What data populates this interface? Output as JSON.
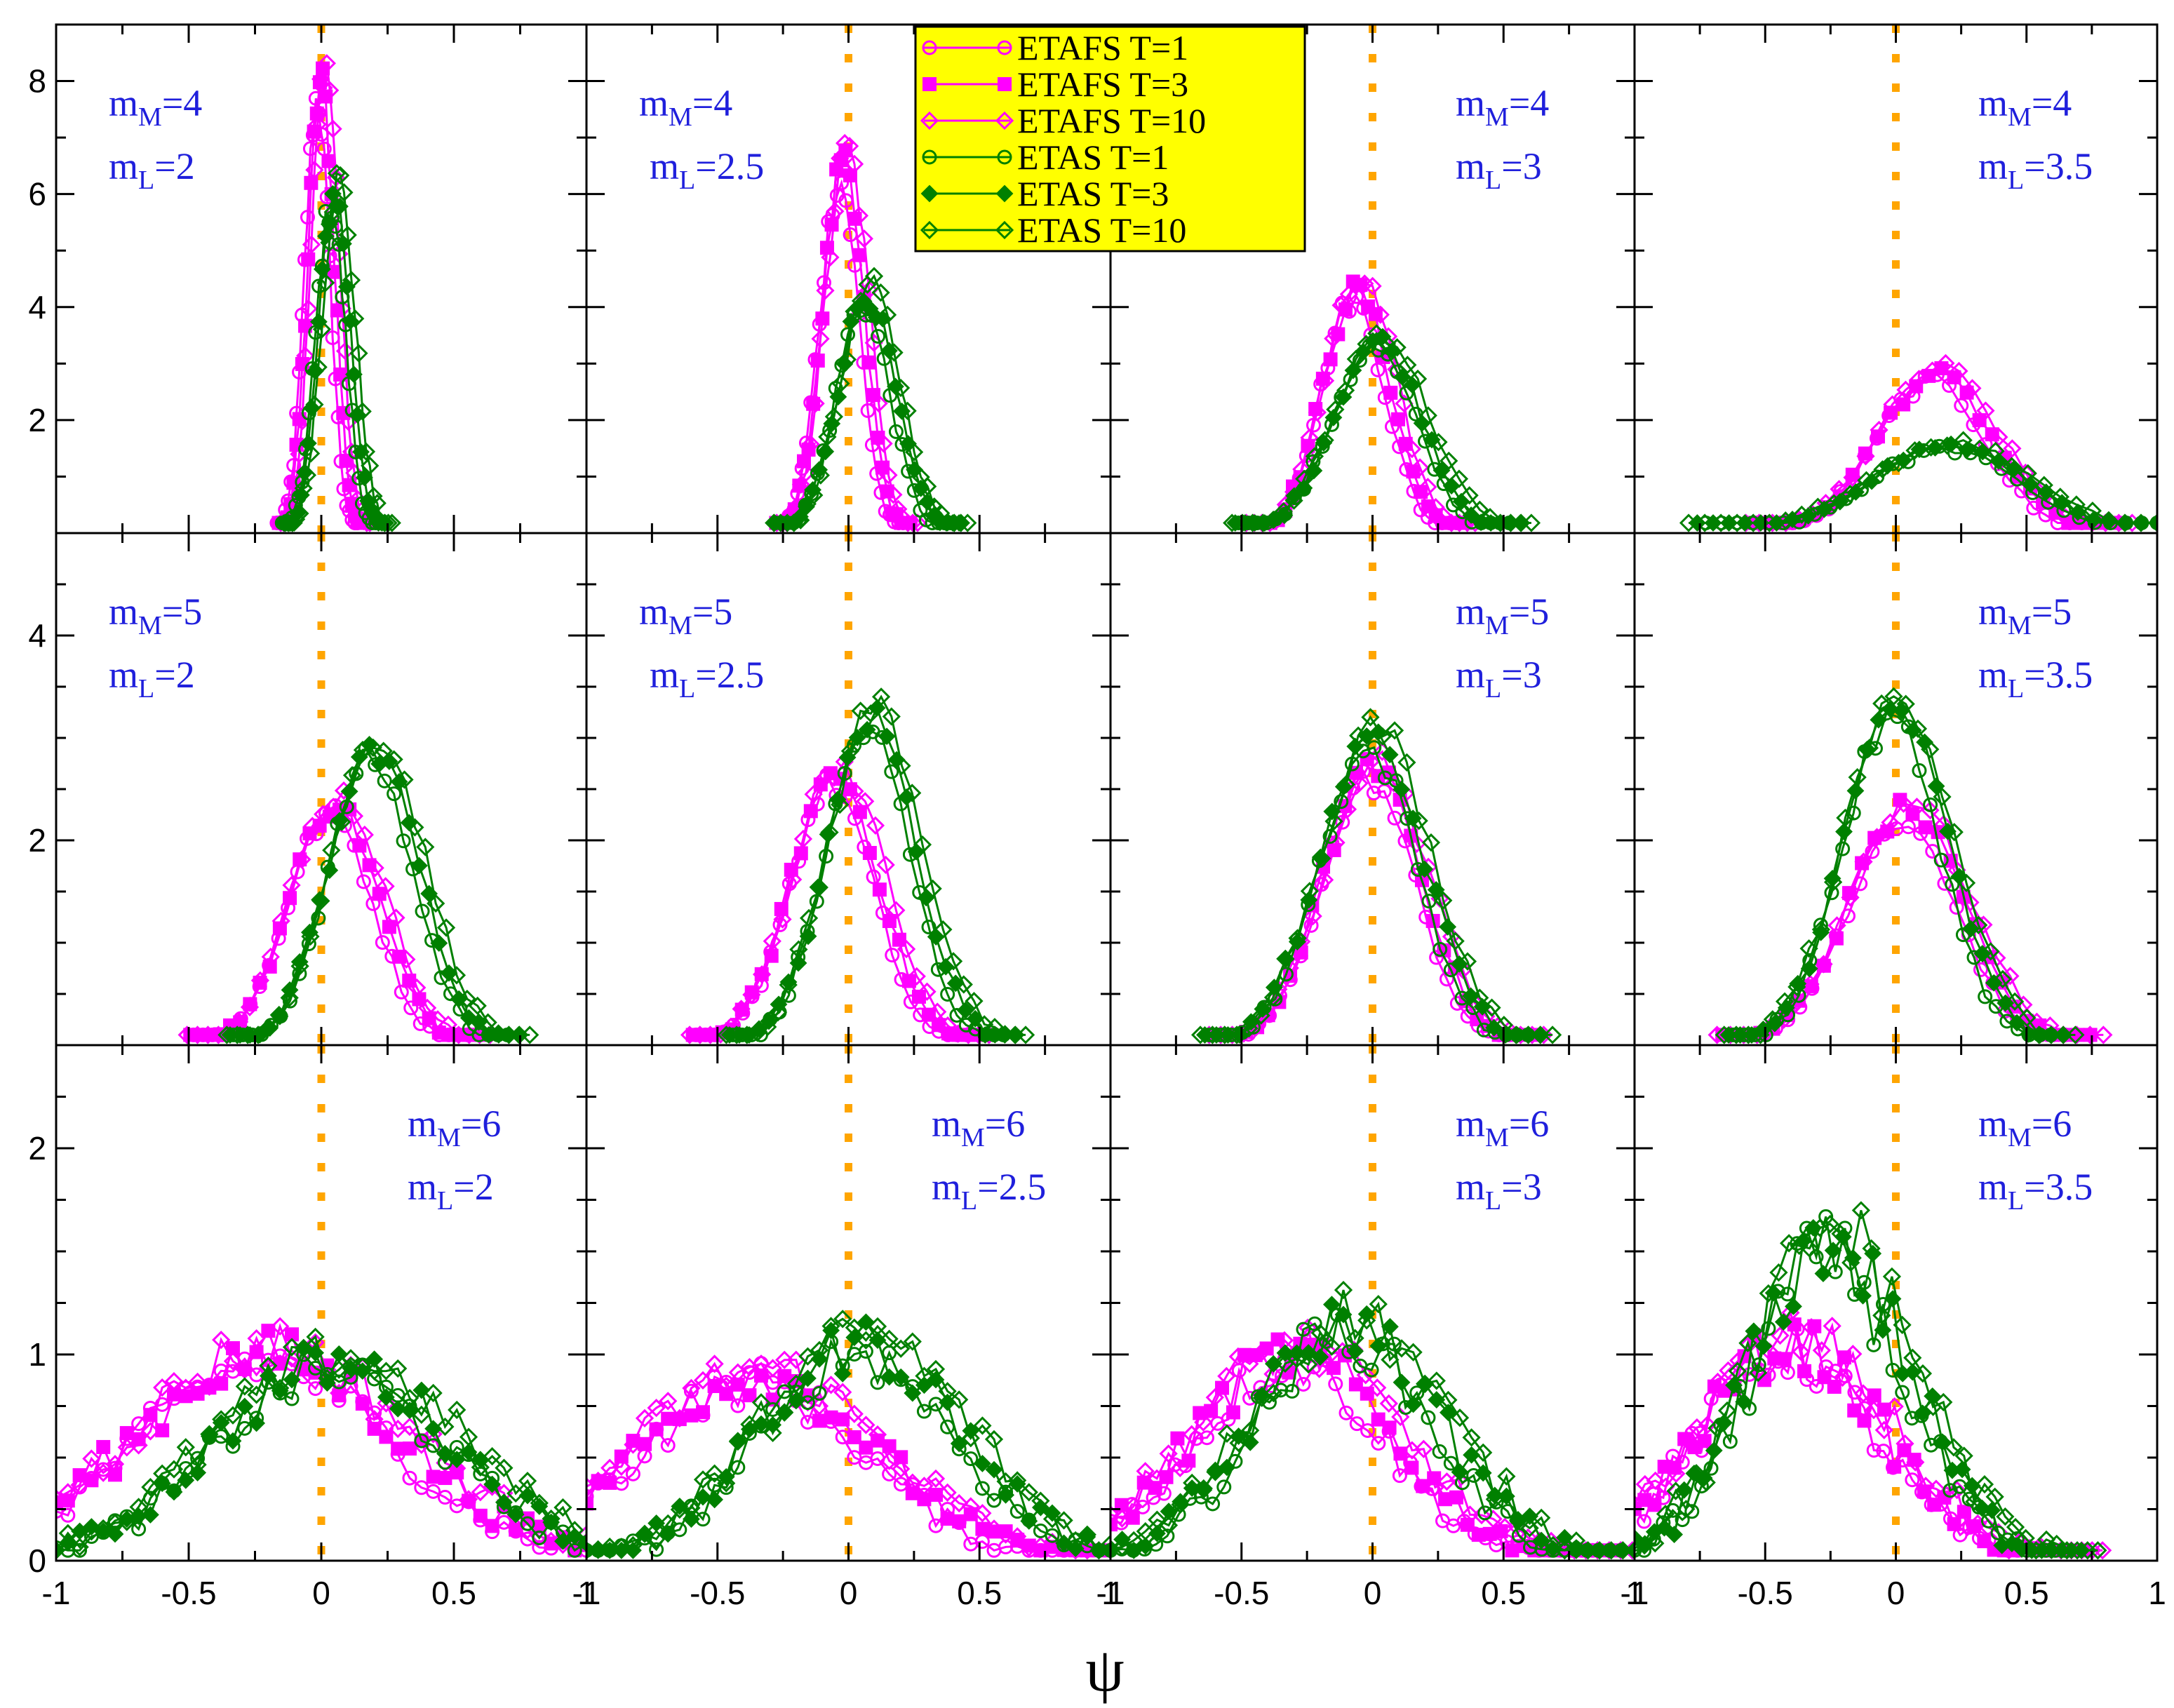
{
  "chart_data": {
    "type": "line",
    "xlabel": "ψ",
    "legend_position": "top",
    "series": [
      {
        "name": "ETAFS T=1",
        "color": "#ff00ff",
        "marker": "open-circle"
      },
      {
        "name": "ETAFS T=3",
        "color": "#ff00ff",
        "marker": "filled-square"
      },
      {
        "name": "ETAFS T=10",
        "color": "#ff00ff",
        "marker": "open-diamond"
      },
      {
        "name": "ETAS T=1",
        "color": "#008000",
        "marker": "open-circle"
      },
      {
        "name": "ETAS T=3",
        "color": "#008000",
        "marker": "filled-diamond"
      },
      {
        "name": "ETAS T=10",
        "color": "#008000",
        "marker": "open-diamond"
      }
    ],
    "reference_line": {
      "x": 0,
      "color": "#ffa500",
      "style": "dotted"
    },
    "x_ticks": [
      "-1",
      "-0.5",
      "0",
      "0.5",
      "1"
    ],
    "xlim": [
      -1,
      1
    ],
    "rows": [
      {
        "ylim": [
          0,
          9
        ],
        "yticks": [
          2,
          4,
          6,
          8
        ]
      },
      {
        "ylim": [
          0,
          5
        ],
        "yticks": [
          2,
          4
        ]
      },
      {
        "ylim": [
          0,
          2.5
        ],
        "yticks": [
          0,
          1,
          2
        ]
      }
    ],
    "panels": [
      {
        "mM": "4",
        "mL": "2",
        "fa": {
          "mu": 0.0,
          "s": 0.05,
          "h": 8.0
        },
        "es": {
          "mu": 0.05,
          "s": 0.06,
          "h": 6.0
        }
      },
      {
        "mM": "4",
        "mL": "2.5",
        "fa": {
          "mu": -0.02,
          "s": 0.08,
          "h": 6.5
        },
        "es": {
          "mu": 0.07,
          "s": 0.11,
          "h": 4.2
        }
      },
      {
        "mM": "4",
        "mL": "3",
        "fa": {
          "mu": -0.06,
          "s": 0.13,
          "h": 4.3
        },
        "es": {
          "mu": 0.02,
          "s": 0.17,
          "h": 3.4
        }
      },
      {
        "mM": "4",
        "mL": "3.5",
        "fa": {
          "mu": 0.15,
          "s": 0.22,
          "h": 2.8
        },
        "es": {
          "mu": 0.2,
          "s": 0.3,
          "h": 1.55
        }
      },
      {
        "mM": "5",
        "mL": "2",
        "fa": {
          "mu": 0.05,
          "s": 0.17,
          "h": 2.35
        },
        "es": {
          "mu": 0.2,
          "s": 0.17,
          "h": 2.9
        }
      },
      {
        "mM": "5",
        "mL": "2.5",
        "fa": {
          "mu": -0.05,
          "s": 0.17,
          "h": 2.65
        },
        "es": {
          "mu": 0.09,
          "s": 0.17,
          "h": 3.2
        }
      },
      {
        "mM": "5",
        "mL": "3",
        "fa": {
          "mu": 0.0,
          "s": 0.19,
          "h": 2.7
        },
        "es": {
          "mu": 0.0,
          "s": 0.2,
          "h": 3.0
        }
      },
      {
        "mM": "5",
        "mL": "3.5",
        "fa": {
          "mu": 0.04,
          "s": 0.22,
          "h": 2.3
        },
        "es": {
          "mu": 0.0,
          "s": 0.2,
          "h": 3.3
        }
      },
      {
        "mM": "6",
        "mL": "2",
        "fa": {
          "mu": -0.2,
          "s": 0.5,
          "h": 1.0
        },
        "es": {
          "mu": 0.05,
          "s": 0.45,
          "h": 0.95
        }
      },
      {
        "mM": "6",
        "mL": "2.5",
        "fa": {
          "mu": -0.35,
          "s": 0.45,
          "h": 0.9
        },
        "es": {
          "mu": 0.05,
          "s": 0.38,
          "h": 1.05
        }
      },
      {
        "mM": "6",
        "mL": "3",
        "fa": {
          "mu": -0.3,
          "s": 0.38,
          "h": 1.0
        },
        "es": {
          "mu": -0.1,
          "s": 0.35,
          "h": 1.15
        }
      },
      {
        "mM": "6",
        "mL": "3.5",
        "fa": {
          "mu": -0.4,
          "s": 0.35,
          "h": 1.05
        },
        "es": {
          "mu": -0.25,
          "s": 0.3,
          "h": 1.55
        }
      }
    ]
  }
}
